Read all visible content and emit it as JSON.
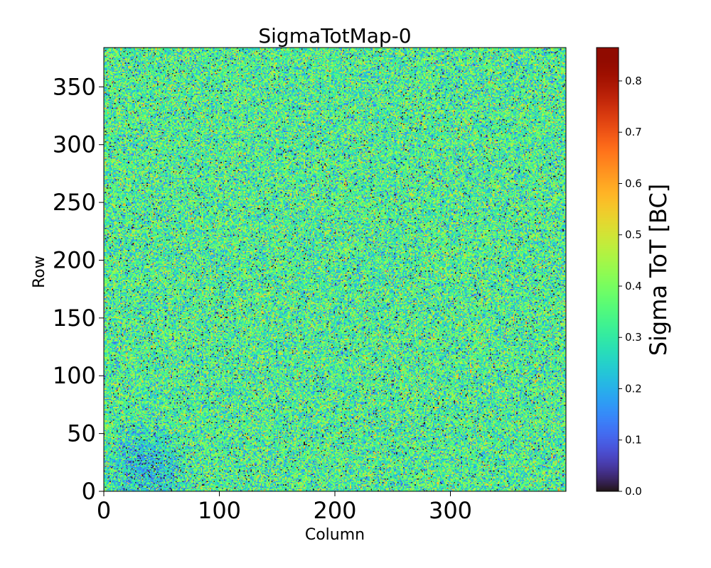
{
  "chart_data": {
    "type": "heatmap",
    "title": "SigmaTotMap-0",
    "xlabel": "Column",
    "ylabel": "Row",
    "colorbar_label": "Sigma ToT [BC]",
    "colormap": "turbo",
    "xlim": [
      0,
      400
    ],
    "ylim": [
      0,
      384
    ],
    "vlim": [
      0,
      0.865
    ],
    "x_ticks": [
      0,
      100,
      200,
      300
    ],
    "y_ticks": [
      0,
      50,
      100,
      150,
      200,
      250,
      300,
      350
    ],
    "colorbar_ticks": [
      0.0,
      0.1,
      0.2,
      0.3,
      0.4,
      0.5,
      0.6,
      0.7,
      0.8
    ],
    "x_tick_labels": [
      "0",
      "100",
      "200",
      "300"
    ],
    "y_tick_labels": [
      "0",
      "50",
      "100",
      "150",
      "200",
      "250",
      "300",
      "350"
    ],
    "colorbar_tick_labels": [
      "0.0",
      "0.1",
      "0.2",
      "0.3",
      "0.4",
      "0.5",
      "0.6",
      "0.7",
      "0.8"
    ],
    "grid": false,
    "value_distribution": {
      "typical": 0.33,
      "spread": 0.11,
      "low_region": "column 0-60, row 0-60"
    }
  }
}
